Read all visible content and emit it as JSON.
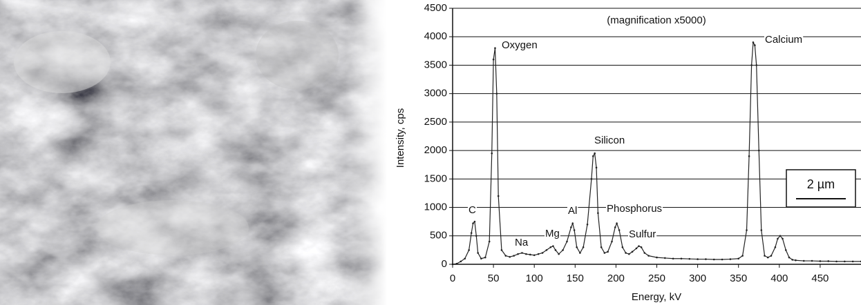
{
  "chart_data": {
    "type": "line",
    "title": "(magnification x5000)",
    "x_label": "Energy, kV",
    "y_label": "Intensity, cps",
    "scale_bar": "2 µm",
    "annotations": [
      "C",
      "Oxygen",
      "Na",
      "Mg",
      "Al",
      "Silicon",
      "Phosphorus",
      "Sulfur",
      "Calcium"
    ],
    "x": [
      0,
      5,
      10,
      15,
      20,
      23,
      25,
      27,
      29,
      31,
      35,
      40,
      45,
      48,
      50,
      52,
      54,
      56,
      60,
      65,
      70,
      75,
      80,
      85,
      90,
      95,
      100,
      105,
      110,
      115,
      120,
      123,
      126,
      130,
      135,
      140,
      145,
      147,
      149,
      152,
      156,
      160,
      165,
      170,
      172,
      174,
      176,
      178,
      182,
      186,
      190,
      195,
      199,
      201,
      204,
      208,
      212,
      216,
      220,
      225,
      228,
      231,
      235,
      240,
      250,
      260,
      270,
      280,
      290,
      300,
      310,
      320,
      330,
      340,
      350,
      355,
      360,
      363,
      366,
      368,
      370,
      372,
      375,
      378,
      382,
      386,
      390,
      395,
      398,
      401,
      404,
      408,
      412,
      416,
      420,
      430,
      440,
      450,
      460,
      470,
      480,
      490,
      500
    ],
    "series": [
      {
        "color": "#222222",
        "values": [
          0,
          10,
          50,
          100,
          250,
          550,
          720,
          750,
          500,
          200,
          100,
          120,
          400,
          1950,
          3600,
          3800,
          3000,
          1200,
          250,
          150,
          130,
          150,
          180,
          200,
          180,
          170,
          160,
          180,
          200,
          250,
          300,
          320,
          250,
          180,
          250,
          400,
          650,
          720,
          600,
          300,
          200,
          300,
          700,
          1500,
          1900,
          1950,
          1700,
          900,
          300,
          200,
          220,
          400,
          650,
          720,
          600,
          300,
          200,
          180,
          220,
          280,
          320,
          300,
          200,
          150,
          120,
          110,
          100,
          100,
          95,
          90,
          90,
          85,
          85,
          90,
          100,
          150,
          600,
          1900,
          3500,
          3900,
          3850,
          3500,
          2000,
          600,
          150,
          120,
          150,
          300,
          450,
          500,
          450,
          250,
          120,
          80,
          70,
          60,
          60,
          55,
          55,
          50,
          50,
          50,
          50
        ]
      }
    ],
    "xlim": [
      0,
      500
    ],
    "xticks": [
      0,
      50,
      100,
      150,
      200,
      250,
      300,
      350,
      400,
      450
    ],
    "ylim": [
      0,
      4500
    ],
    "yticks": [
      0,
      500,
      1000,
      1500,
      2000,
      2500,
      3000,
      3500,
      4000,
      4500
    ],
    "grid": true
  }
}
